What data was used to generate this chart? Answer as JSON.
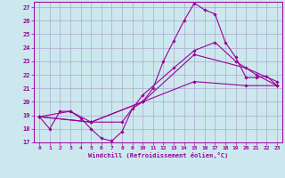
{
  "xlabel": "Windchill (Refroidissement éolien,°C)",
  "bg_color": "#cce8ee",
  "grid_color": "#aaaacc",
  "line_color": "#990099",
  "xlim": [
    -0.5,
    23.5
  ],
  "ylim": [
    17,
    27.4
  ],
  "xticks": [
    0,
    1,
    2,
    3,
    4,
    5,
    6,
    7,
    8,
    9,
    10,
    11,
    12,
    13,
    14,
    15,
    16,
    17,
    18,
    19,
    20,
    21,
    22,
    23
  ],
  "yticks": [
    17,
    18,
    19,
    20,
    21,
    22,
    23,
    24,
    25,
    26,
    27
  ],
  "lines": [
    {
      "x": [
        0,
        1,
        2,
        3,
        4,
        5,
        6,
        7,
        8,
        9,
        10,
        11,
        12,
        13,
        14,
        15,
        16,
        17,
        18,
        19,
        20,
        21,
        22,
        23
      ],
      "y": [
        18.9,
        18.0,
        19.3,
        19.3,
        18.8,
        18.0,
        17.3,
        17.1,
        17.8,
        19.5,
        20.0,
        21.0,
        23.0,
        24.5,
        26.0,
        27.3,
        26.8,
        26.5,
        24.4,
        23.3,
        21.8,
        21.8,
        21.9,
        21.2
      ]
    },
    {
      "x": [
        0,
        3,
        5,
        8,
        10,
        13,
        15,
        17,
        19,
        21,
        23
      ],
      "y": [
        18.9,
        19.3,
        18.5,
        18.5,
        20.5,
        22.5,
        23.8,
        24.4,
        23.0,
        22.0,
        21.2
      ]
    },
    {
      "x": [
        0,
        5,
        10,
        15,
        20,
        23
      ],
      "y": [
        18.9,
        18.5,
        20.0,
        23.5,
        22.5,
        21.5
      ]
    },
    {
      "x": [
        0,
        5,
        10,
        15,
        20,
        23
      ],
      "y": [
        18.9,
        18.5,
        20.0,
        21.5,
        21.2,
        21.2
      ]
    }
  ]
}
